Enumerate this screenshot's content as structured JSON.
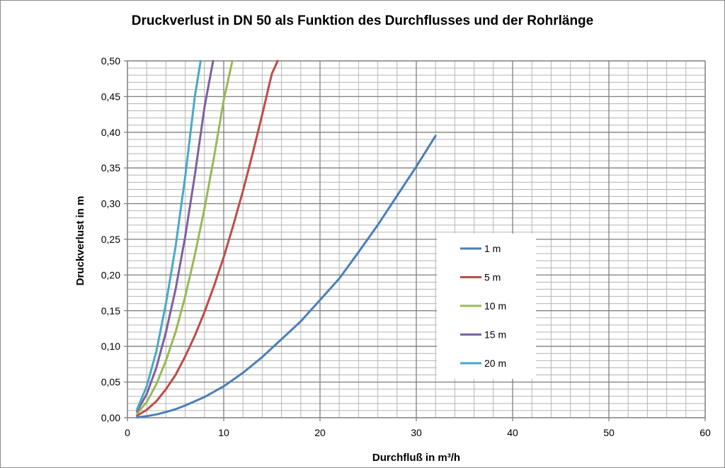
{
  "chart_data": {
    "type": "line",
    "title": "Druckverlust in DN 50 als Funktion des Durchflusses und der Rohrlänge",
    "xlabel": "Durchfluß in m³/h",
    "ylabel": "Druckverlust in m",
    "xlim": [
      0,
      60
    ],
    "ylim": [
      0,
      0.5
    ],
    "x_ticks": [
      0,
      10,
      20,
      30,
      40,
      50,
      60
    ],
    "x_tick_labels": [
      "0",
      "10",
      "20",
      "30",
      "40",
      "50",
      "60"
    ],
    "y_ticks": [
      0,
      0.05,
      0.1,
      0.15,
      0.2,
      0.25,
      0.3,
      0.35,
      0.4,
      0.45,
      0.5
    ],
    "y_tick_labels": [
      "0,00",
      "0,05",
      "0,10",
      "0,15",
      "0,20",
      "0,25",
      "0,30",
      "0,35",
      "0,40",
      "0,45",
      "0,50"
    ],
    "grid": true,
    "legend_position": "right",
    "series": [
      {
        "name": "1 m",
        "color": "#4a7ebb",
        "x": [
          1,
          2,
          3,
          4,
          5,
          6,
          8,
          10,
          12,
          14,
          16,
          18,
          20,
          22,
          24,
          26,
          28,
          30,
          32
        ],
        "y": [
          0.0005,
          0.0022,
          0.0047,
          0.008,
          0.012,
          0.0172,
          0.029,
          0.044,
          0.063,
          0.085,
          0.11,
          0.135,
          0.165,
          0.195,
          0.232,
          0.27,
          0.311,
          0.352,
          0.395
        ]
      },
      {
        "name": "5 m",
        "color": "#be4b48",
        "x": [
          1,
          2,
          3,
          4,
          5,
          6,
          7,
          8,
          9,
          10,
          11,
          12,
          13,
          14,
          15,
          15.6
        ],
        "y": [
          0.003,
          0.011,
          0.023,
          0.04,
          0.06,
          0.086,
          0.115,
          0.148,
          0.185,
          0.225,
          0.27,
          0.318,
          0.37,
          0.425,
          0.482,
          0.5
        ]
      },
      {
        "name": "10 m",
        "color": "#98b954",
        "x": [
          1,
          2,
          3,
          4,
          5,
          6,
          7,
          8,
          9,
          10,
          10.9
        ],
        "y": [
          0.006,
          0.022,
          0.047,
          0.08,
          0.12,
          0.17,
          0.228,
          0.293,
          0.366,
          0.445,
          0.5
        ]
      },
      {
        "name": "15 m",
        "color": "#7d60a0",
        "x": [
          1,
          2,
          3,
          4,
          5,
          6,
          7,
          8,
          8.9
        ],
        "y": [
          0.009,
          0.033,
          0.07,
          0.12,
          0.18,
          0.254,
          0.34,
          0.435,
          0.5
        ]
      },
      {
        "name": "20 m",
        "color": "#46aac5",
        "x": [
          1,
          2,
          3,
          4,
          5,
          6,
          7,
          7.6
        ],
        "y": [
          0.012,
          0.044,
          0.093,
          0.16,
          0.24,
          0.338,
          0.45,
          0.5
        ]
      }
    ]
  }
}
